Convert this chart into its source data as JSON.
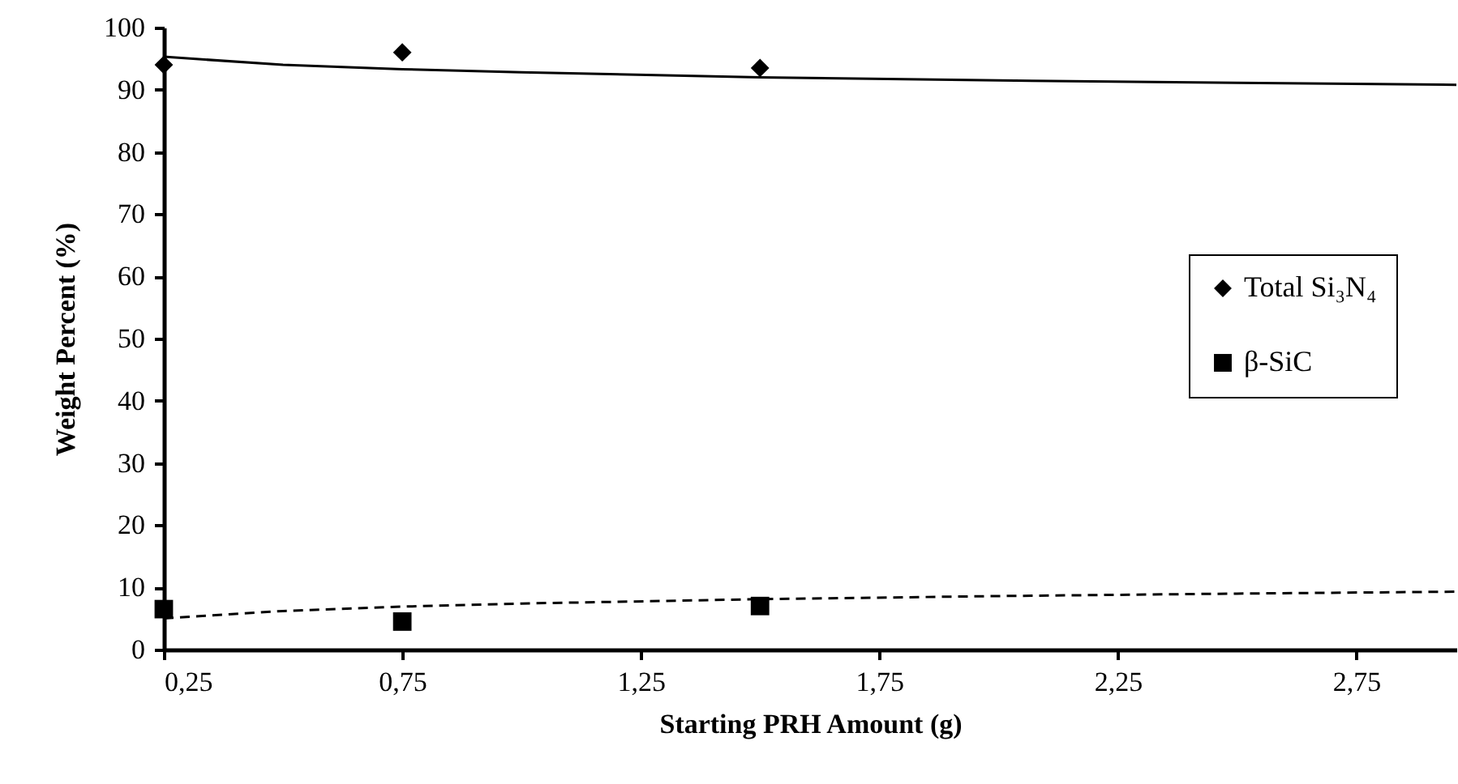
{
  "chart_data": {
    "type": "scatter",
    "xlabel": "Starting PRH Amount (g)",
    "ylabel": "Weight Percent (%)",
    "xlim": [
      0.25,
      2.96
    ],
    "xticks": [
      {
        "value": 0.25,
        "label": "0,25"
      },
      {
        "value": 0.75,
        "label": "0,75"
      },
      {
        "value": 1.25,
        "label": "1,25"
      },
      {
        "value": 1.75,
        "label": "1,75"
      },
      {
        "value": 2.25,
        "label": "2,25"
      },
      {
        "value": 2.75,
        "label": "2,75"
      }
    ],
    "ylim": [
      0,
      100
    ],
    "yticks": [
      0,
      10,
      20,
      30,
      40,
      50,
      60,
      70,
      80,
      90,
      100
    ],
    "legend": "right",
    "grid": false,
    "series": [
      {
        "name": "Total Si₃N₄",
        "marker": "diamond",
        "color": "#000000",
        "x": [
          0.25,
          0.75,
          1.5
        ],
        "values": [
          94,
          96,
          93.5
        ]
      },
      {
        "name": "β-SiC",
        "marker": "square",
        "color": "#000000",
        "x": [
          0.25,
          0.75,
          1.5
        ],
        "values": [
          6.5,
          4.5,
          7
        ]
      },
      {
        "type": "line",
        "line_style": "solid",
        "color": "#000000",
        "x": [
          0.25,
          0.5,
          0.75,
          1,
          1.5,
          2,
          2.5,
          2.96
        ],
        "values": [
          95.3,
          94.0,
          93.3,
          92.8,
          92.0,
          91.5,
          91.1,
          90.8
        ]
      },
      {
        "type": "line",
        "line_style": "dashed",
        "color": "#000000",
        "x": [
          0.25,
          0.5,
          0.75,
          1,
          1.5,
          2,
          2.5,
          2.96
        ],
        "values": [
          5.0,
          6.2,
          6.9,
          7.4,
          8.1,
          8.6,
          9.0,
          9.3
        ]
      }
    ]
  }
}
